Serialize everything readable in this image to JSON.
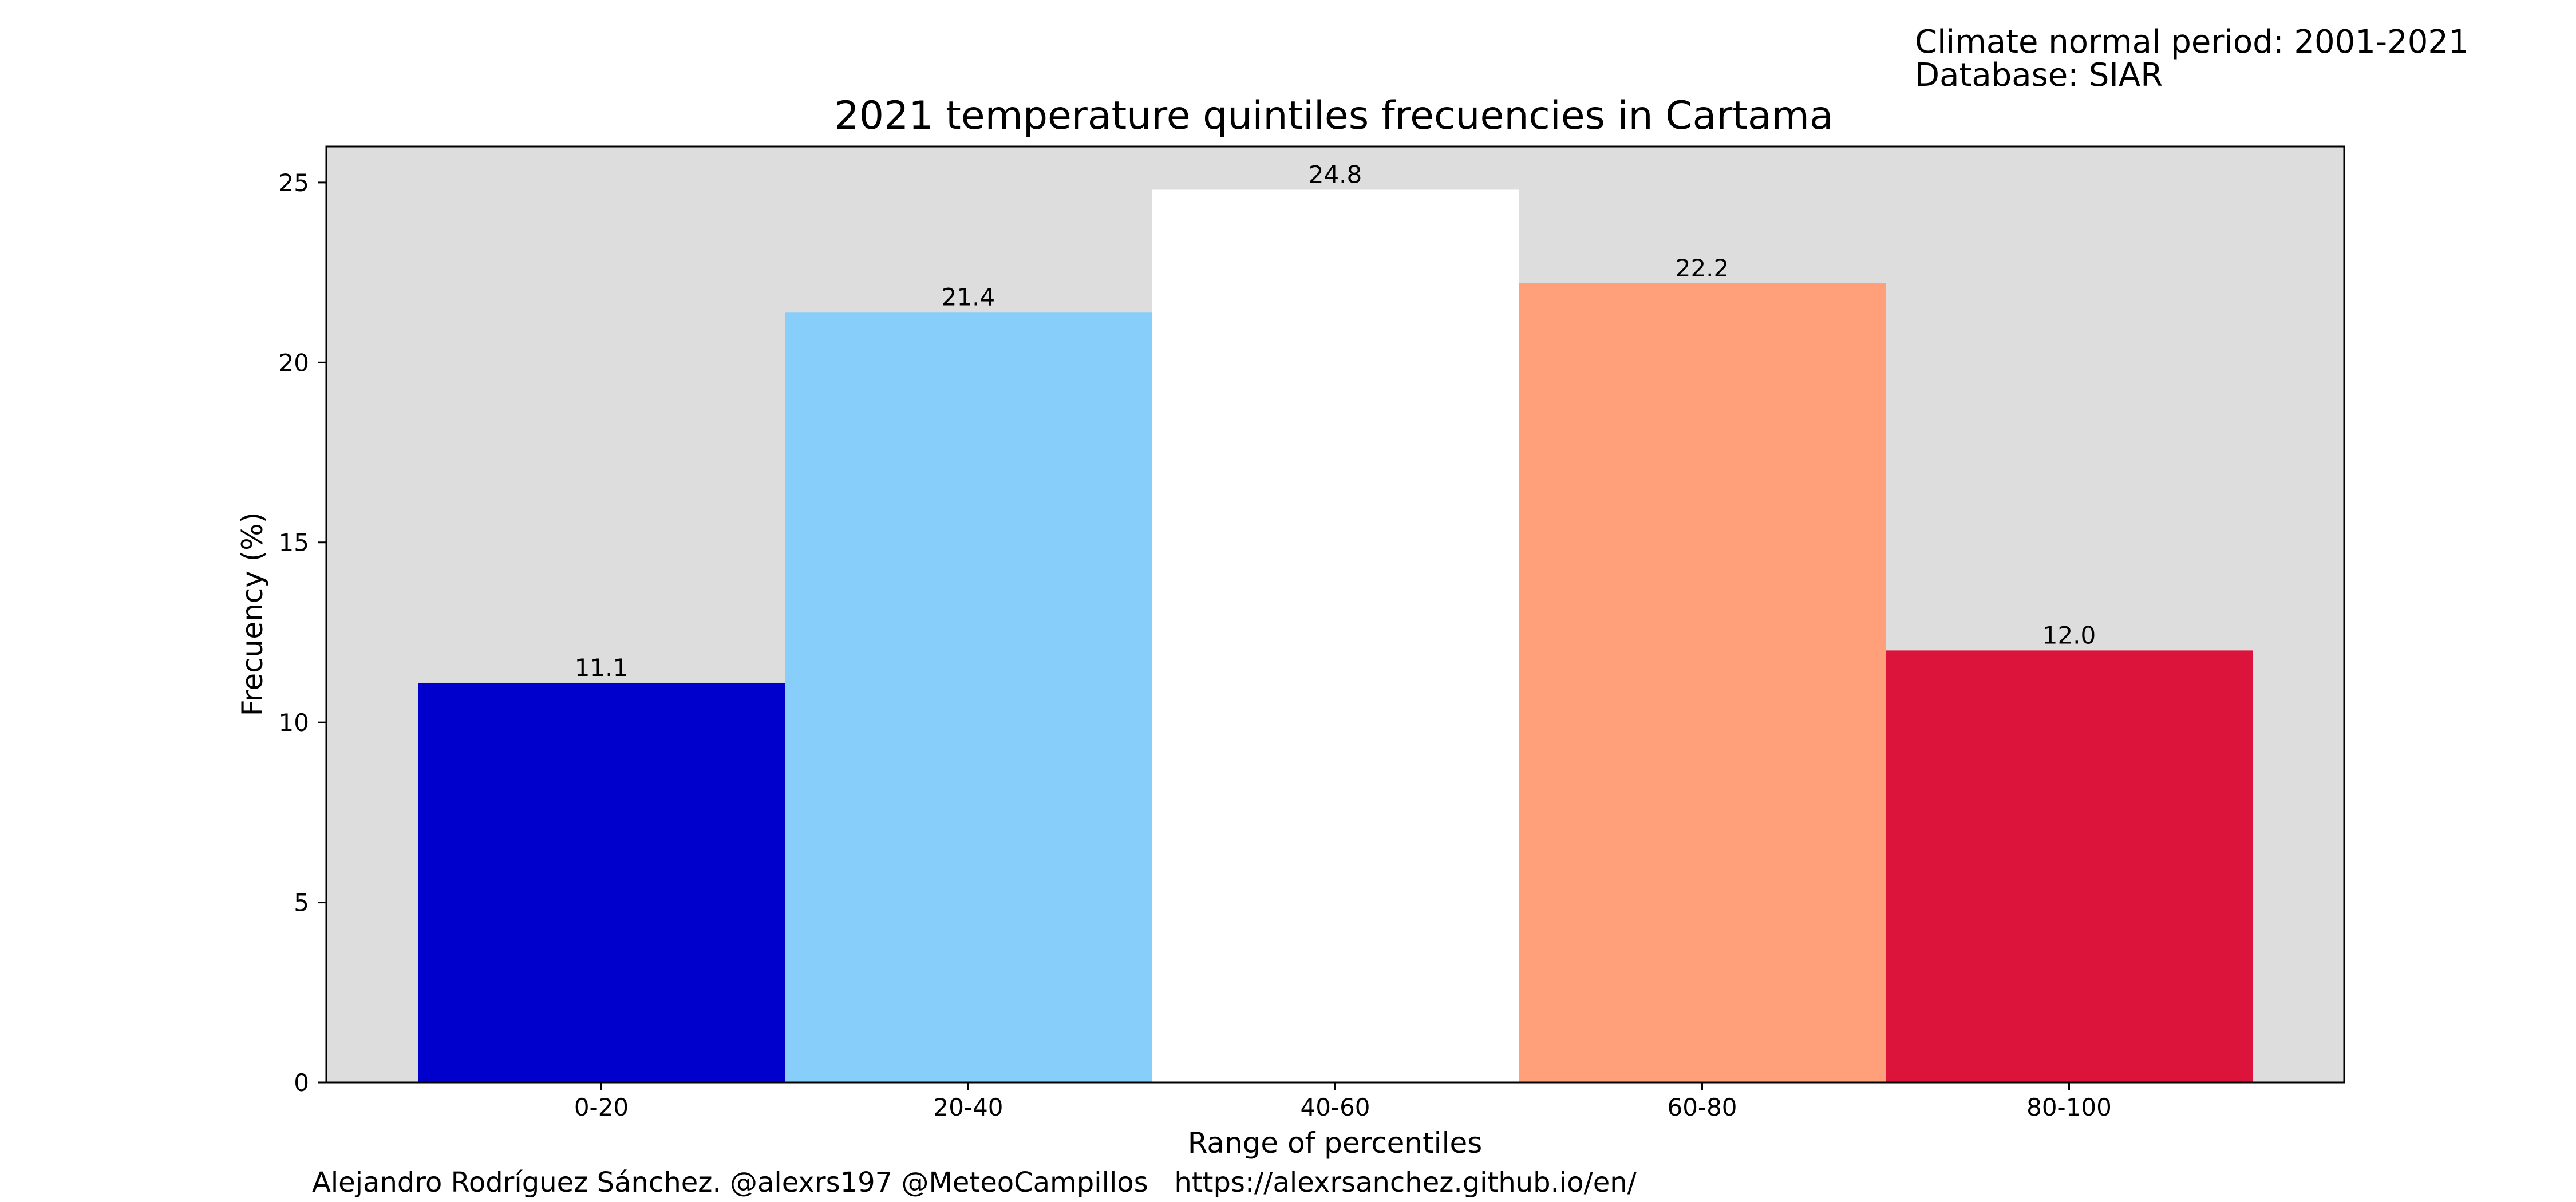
{
  "header_note": {
    "line1": "Climate normal period: 2001-2021",
    "line2": "Database: SIAR"
  },
  "footer_credit": "Alejandro Rodríguez Sánchez. @alexrs197 @MeteoCampillos   https://alexrsanchez.github.io/en/",
  "chart_data": {
    "type": "bar",
    "title": "2021 temperature quintiles frecuencies in Cartama",
    "xlabel": "Range of percentiles",
    "ylabel": "Frecuency (%)",
    "categories": [
      "0-20",
      "20-40",
      "40-60",
      "60-80",
      "80-100"
    ],
    "values": [
      11.1,
      21.4,
      24.8,
      22.2,
      12.0
    ],
    "value_labels": [
      "11.1",
      "21.4",
      "24.8",
      "22.2",
      "12.0"
    ],
    "bar_colors": [
      "#0000cd",
      "#87cefa",
      "#ffffff",
      "#ffa07a",
      "#dc143c"
    ],
    "ylim": [
      0,
      26
    ],
    "yticks": [
      0,
      5,
      10,
      15,
      20,
      25
    ],
    "plot_background": "#dddddd",
    "grid": false,
    "legend": "none"
  }
}
